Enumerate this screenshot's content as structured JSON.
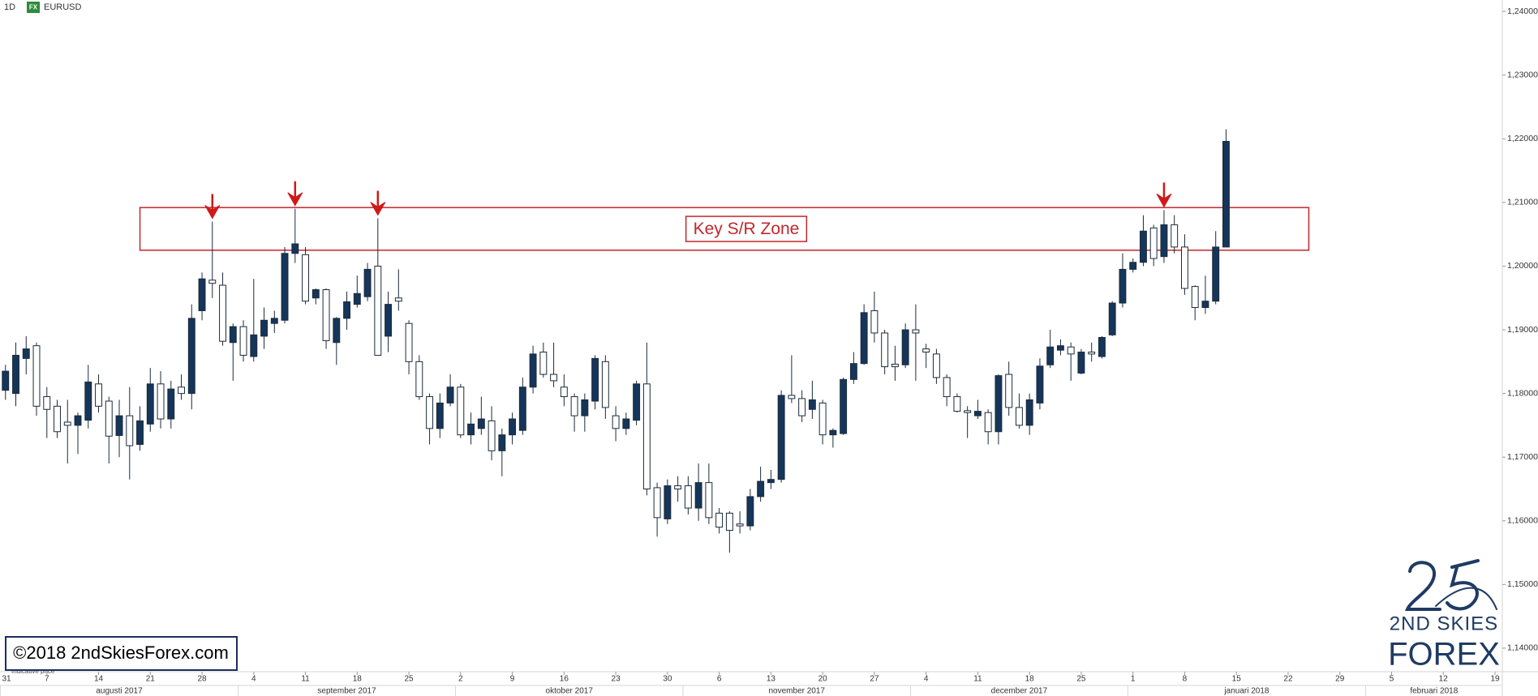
{
  "chart_data": {
    "type": "candlestick",
    "interval": "1D",
    "badge": "FX",
    "series": [
      {
        "name": "EURUSD",
        "up_color": "#15355a",
        "down_color": "#ffffff",
        "open": [
          1.1805,
          1.18,
          1.1855,
          1.1875,
          1.1795,
          1.178,
          1.1755,
          1.175,
          1.1758,
          1.1815,
          1.1788,
          1.1734,
          1.1765,
          1.172,
          1.1752,
          1.1815,
          1.176,
          1.181,
          1.18,
          1.193,
          1.1978,
          1.197,
          1.188,
          1.1905,
          1.1858,
          1.189,
          1.191,
          1.1915,
          1.202,
          1.2018,
          1.195,
          1.1963,
          1.188,
          1.1918,
          1.194,
          1.1952,
          1.2,
          1.189,
          1.195,
          1.191,
          1.185,
          1.1795,
          1.1745,
          1.1785,
          1.181,
          1.1735,
          1.1745,
          1.1757,
          1.171,
          1.1735,
          1.1742,
          1.181,
          1.1865,
          1.183,
          1.181,
          1.1795,
          1.1765,
          1.1788,
          1.185,
          1.1765,
          1.1745,
          1.1758,
          1.1815,
          1.1652,
          1.1603,
          1.1655,
          1.1655,
          1.162,
          1.166,
          1.1612,
          1.1612,
          1.1595,
          1.1592,
          1.1638,
          1.166,
          1.1665,
          1.1797,
          1.1792,
          1.1775,
          1.1785,
          1.1735,
          1.1737,
          1.1822,
          1.1847,
          1.193,
          1.1895,
          1.1846,
          1.1845,
          1.19,
          1.187,
          1.1862,
          1.1825,
          1.1795,
          1.1773,
          1.1765,
          1.177,
          1.174,
          1.183,
          1.1778,
          1.175,
          1.1785,
          1.1845,
          1.1868,
          1.1873,
          1.1832,
          1.1865,
          1.1858,
          1.1892,
          1.1942,
          1.1995,
          1.2006,
          1.206,
          1.2015,
          1.2065,
          1.203,
          1.1968,
          1.1935,
          1.1945,
          1.203
        ],
        "high": [
          1.1845,
          1.188,
          1.189,
          1.188,
          1.181,
          1.179,
          1.179,
          1.177,
          1.1845,
          1.183,
          1.1795,
          1.179,
          1.181,
          1.178,
          1.184,
          1.1835,
          1.182,
          1.183,
          1.194,
          1.199,
          1.207,
          1.199,
          1.191,
          1.1915,
          1.198,
          1.1935,
          1.193,
          1.203,
          1.209,
          1.203,
          1.1965,
          1.1965,
          1.192,
          1.196,
          1.1985,
          1.2005,
          1.2075,
          1.196,
          1.1995,
          1.1915,
          1.186,
          1.18,
          1.18,
          1.183,
          1.1815,
          1.177,
          1.1795,
          1.178,
          1.1745,
          1.177,
          1.1825,
          1.1875,
          1.188,
          1.188,
          1.183,
          1.18,
          1.18,
          1.186,
          1.186,
          1.178,
          1.177,
          1.182,
          1.188,
          1.166,
          1.1665,
          1.167,
          1.167,
          1.169,
          1.169,
          1.162,
          1.1615,
          1.1615,
          1.165,
          1.1685,
          1.168,
          1.1805,
          1.186,
          1.1805,
          1.182,
          1.179,
          1.1745,
          1.1825,
          1.1865,
          1.194,
          1.196,
          1.19,
          1.1875,
          1.191,
          1.194,
          1.1878,
          1.187,
          1.183,
          1.18,
          1.178,
          1.179,
          1.1775,
          1.183,
          1.185,
          1.18,
          1.18,
          1.1855,
          1.19,
          1.1885,
          1.188,
          1.187,
          1.188,
          1.189,
          1.1945,
          1.202,
          1.2012,
          1.208,
          1.2065,
          1.2088,
          1.208,
          1.205,
          1.197,
          1.1985,
          1.2055,
          1.2215
        ],
        "low": [
          1.179,
          1.178,
          1.183,
          1.1765,
          1.173,
          1.173,
          1.169,
          1.1705,
          1.1745,
          1.177,
          1.169,
          1.17,
          1.1665,
          1.171,
          1.174,
          1.1745,
          1.1745,
          1.179,
          1.1775,
          1.1915,
          1.195,
          1.1875,
          1.182,
          1.185,
          1.185,
          1.187,
          1.1895,
          1.191,
          1.2005,
          1.194,
          1.194,
          1.187,
          1.1845,
          1.19,
          1.1935,
          1.1945,
          1.186,
          1.1865,
          1.193,
          1.183,
          1.179,
          1.172,
          1.173,
          1.178,
          1.173,
          1.172,
          1.1735,
          1.1695,
          1.167,
          1.172,
          1.1735,
          1.18,
          1.1825,
          1.181,
          1.178,
          1.174,
          1.174,
          1.1775,
          1.176,
          1.1725,
          1.1735,
          1.175,
          1.164,
          1.1575,
          1.1595,
          1.163,
          1.161,
          1.16,
          1.1595,
          1.158,
          1.155,
          1.158,
          1.1585,
          1.163,
          1.165,
          1.166,
          1.1785,
          1.1755,
          1.176,
          1.172,
          1.1715,
          1.1735,
          1.1815,
          1.1845,
          1.188,
          1.183,
          1.182,
          1.184,
          1.182,
          1.184,
          1.1815,
          1.178,
          1.177,
          1.173,
          1.176,
          1.172,
          1.172,
          1.1765,
          1.1745,
          1.1735,
          1.1775,
          1.184,
          1.186,
          1.182,
          1.183,
          1.185,
          1.1855,
          1.189,
          1.1935,
          1.199,
          1.2,
          1.2,
          1.2005,
          1.202,
          1.1955,
          1.1915,
          1.1925,
          1.194,
          1.203
        ],
        "close": [
          1.1835,
          1.186,
          1.187,
          1.178,
          1.1775,
          1.174,
          1.175,
          1.1765,
          1.1818,
          1.178,
          1.1733,
          1.1765,
          1.1718,
          1.1757,
          1.1815,
          1.176,
          1.1807,
          1.18,
          1.1918,
          1.198,
          1.1973,
          1.1882,
          1.1905,
          1.186,
          1.1892,
          1.1915,
          1.1918,
          1.202,
          1.2035,
          1.1945,
          1.1963,
          1.1883,
          1.1918,
          1.1944,
          1.1957,
          1.1995,
          1.186,
          1.194,
          1.1945,
          1.185,
          1.1795,
          1.1745,
          1.1785,
          1.181,
          1.1735,
          1.1752,
          1.176,
          1.171,
          1.1735,
          1.176,
          1.181,
          1.1862,
          1.183,
          1.182,
          1.1795,
          1.1765,
          1.179,
          1.1855,
          1.1778,
          1.1745,
          1.176,
          1.1815,
          1.165,
          1.1605,
          1.1655,
          1.165,
          1.162,
          1.166,
          1.1605,
          1.159,
          1.1585,
          1.1592,
          1.1638,
          1.1662,
          1.1665,
          1.1797,
          1.1792,
          1.1765,
          1.179,
          1.1735,
          1.1742,
          1.1822,
          1.1847,
          1.1927,
          1.1895,
          1.1842,
          1.1842,
          1.19,
          1.1895,
          1.1865,
          1.1825,
          1.1795,
          1.1772,
          1.177,
          1.1772,
          1.174,
          1.1828,
          1.1778,
          1.175,
          1.179,
          1.1843,
          1.1873,
          1.1875,
          1.1862,
          1.1865,
          1.1862,
          1.1888,
          1.1942,
          1.1995,
          1.2006,
          1.2055,
          1.2012,
          1.2065,
          1.203,
          1.1965,
          1.1935,
          1.1945,
          1.203,
          1.2196
        ]
      }
    ],
    "x": [
      "2017-08-01",
      "2017-08-02",
      "2017-08-03",
      "2017-08-04",
      "2017-08-07",
      "2017-08-08",
      "2017-08-09",
      "2017-08-10",
      "2017-08-11",
      "2017-08-14",
      "2017-08-15",
      "2017-08-16",
      "2017-08-17",
      "2017-08-18",
      "2017-08-21",
      "2017-08-22",
      "2017-08-23",
      "2017-08-24",
      "2017-08-25",
      "2017-08-28",
      "2017-08-29",
      "2017-08-30",
      "2017-08-31",
      "2017-09-01",
      "2017-09-04",
      "2017-09-05",
      "2017-09-06",
      "2017-09-07",
      "2017-09-08",
      "2017-09-11",
      "2017-09-12",
      "2017-09-13",
      "2017-09-14",
      "2017-09-15",
      "2017-09-18",
      "2017-09-19",
      "2017-09-20",
      "2017-09-21",
      "2017-09-22",
      "2017-09-25",
      "2017-09-26",
      "2017-09-27",
      "2017-09-28",
      "2017-09-29",
      "2017-10-02",
      "2017-10-03",
      "2017-10-04",
      "2017-10-05",
      "2017-10-06",
      "2017-10-09",
      "2017-10-10",
      "2017-10-11",
      "2017-10-12",
      "2017-10-13",
      "2017-10-16",
      "2017-10-17",
      "2017-10-18",
      "2017-10-19",
      "2017-10-20",
      "2017-10-23",
      "2017-10-24",
      "2017-10-25",
      "2017-10-26",
      "2017-10-27",
      "2017-10-30",
      "2017-10-31",
      "2017-11-01",
      "2017-11-02",
      "2017-11-03",
      "2017-11-06",
      "2017-11-07",
      "2017-11-08",
      "2017-11-09",
      "2017-11-10",
      "2017-11-13",
      "2017-11-14",
      "2017-11-15",
      "2017-11-16",
      "2017-11-17",
      "2017-11-20",
      "2017-11-21",
      "2017-11-22",
      "2017-11-23",
      "2017-11-24",
      "2017-11-27",
      "2017-11-28",
      "2017-11-29",
      "2017-11-30",
      "2017-12-01",
      "2017-12-04",
      "2017-12-05",
      "2017-12-06",
      "2017-12-07",
      "2017-12-08",
      "2017-12-11",
      "2017-12-12",
      "2017-12-13",
      "2017-12-14",
      "2017-12-15",
      "2017-12-18",
      "2017-12-19",
      "2017-12-20",
      "2017-12-21",
      "2017-12-22",
      "2017-12-25",
      "2017-12-26",
      "2017-12-27",
      "2017-12-28",
      "2017-12-29",
      "2018-01-01",
      "2018-01-02",
      "2018-01-03",
      "2018-01-04",
      "2018-01-05",
      "2018-01-08",
      "2018-01-09",
      "2018-01-10",
      "2018-01-11",
      "2018-01-12"
    ],
    "xlim": [
      "2017-07-31",
      "2018-02-19"
    ],
    "xticks": [
      {
        "value": "2017-07-31",
        "label": "31"
      },
      {
        "value": "2017-08-07",
        "label": "7"
      },
      {
        "value": "2017-08-14",
        "label": "14"
      },
      {
        "value": "2017-08-21",
        "label": "21"
      },
      {
        "value": "2017-08-28",
        "label": "28"
      },
      {
        "value": "2017-09-04",
        "label": "4"
      },
      {
        "value": "2017-09-11",
        "label": "11"
      },
      {
        "value": "2017-09-18",
        "label": "18"
      },
      {
        "value": "2017-09-25",
        "label": "25"
      },
      {
        "value": "2017-10-02",
        "label": "2"
      },
      {
        "value": "2017-10-09",
        "label": "9"
      },
      {
        "value": "2017-10-16",
        "label": "16"
      },
      {
        "value": "2017-10-23",
        "label": "23"
      },
      {
        "value": "2017-10-30",
        "label": "30"
      },
      {
        "value": "2017-11-06",
        "label": "6"
      },
      {
        "value": "2017-11-13",
        "label": "13"
      },
      {
        "value": "2017-11-20",
        "label": "20"
      },
      {
        "value": "2017-11-27",
        "label": "27"
      },
      {
        "value": "2017-12-04",
        "label": "4"
      },
      {
        "value": "2017-12-11",
        "label": "11"
      },
      {
        "value": "2017-12-18",
        "label": "18"
      },
      {
        "value": "2017-12-25",
        "label": "25"
      },
      {
        "value": "2018-01-01",
        "label": "1"
      },
      {
        "value": "2018-01-08",
        "label": "8"
      },
      {
        "value": "2018-01-15",
        "label": "15"
      },
      {
        "value": "2018-01-22",
        "label": "22"
      },
      {
        "value": "2018-01-29",
        "label": "29"
      },
      {
        "value": "2018-02-05",
        "label": "5"
      },
      {
        "value": "2018-02-12",
        "label": "12"
      },
      {
        "value": "2018-02-19",
        "label": "19"
      }
    ],
    "months": [
      {
        "value": "2017-08",
        "label": "augusti 2017"
      },
      {
        "value": "2017-09",
        "label": "september 2017"
      },
      {
        "value": "2017-10",
        "label": "oktober 2017"
      },
      {
        "value": "2017-11",
        "label": "november 2017"
      },
      {
        "value": "2017-12",
        "label": "december 2017"
      },
      {
        "value": "2018-01",
        "label": "januari 2018"
      },
      {
        "value": "2018-02",
        "label": "februari 2018"
      }
    ],
    "ylim": [
      1.1363,
      1.2418
    ],
    "yticks": [
      {
        "value": 1.14,
        "label": "1,14000"
      },
      {
        "value": 1.15,
        "label": "1,15000"
      },
      {
        "value": 1.16,
        "label": "1,16000"
      },
      {
        "value": 1.17,
        "label": "1,17000"
      },
      {
        "value": 1.18,
        "label": "1,18000"
      },
      {
        "value": 1.19,
        "label": "1,19000"
      },
      {
        "value": 1.2,
        "label": "1,20000"
      },
      {
        "value": 1.21,
        "label": "1,21000"
      },
      {
        "value": 1.22,
        "label": "1,22000"
      },
      {
        "value": 1.23,
        "label": "1,23000"
      },
      {
        "value": 1.24,
        "label": "1,24000"
      }
    ],
    "grid": false,
    "zone": {
      "label": "Key S/R Zone",
      "low": 1.2025,
      "high": 1.2092,
      "from": "2017-08-18",
      "to": "2018-01-24",
      "color": "#c0272d"
    },
    "arrows": [
      "2017-08-29",
      "2017-09-08",
      "2017-09-20",
      "2018-01-04"
    ],
    "arrow_color": "#d01818",
    "note": "Indicative price",
    "copyright": "©2018 2ndSkiesForex.com",
    "logo": {
      "line1": "2ND SKIES",
      "line2": "FOREX",
      "color": "#1f3b63"
    }
  }
}
